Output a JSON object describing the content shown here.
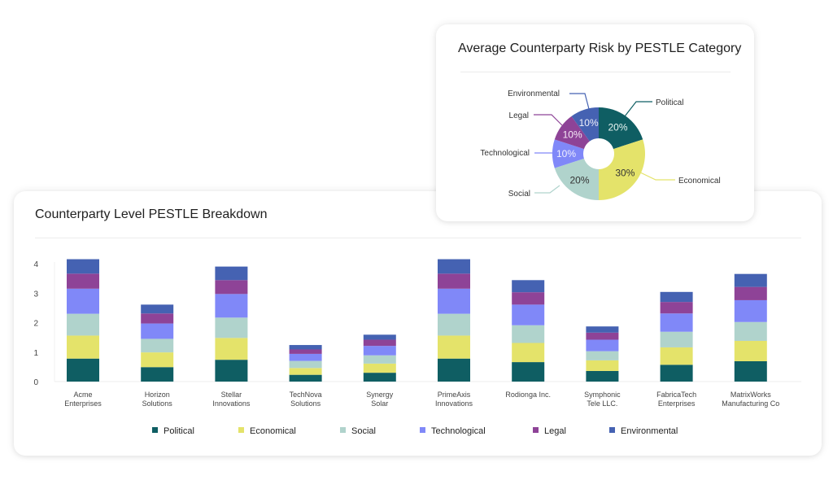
{
  "bar_card": {
    "title": "Counterparty Level PESTLE Breakdown"
  },
  "donut_card": {
    "title": "Average Counterparty Risk by PESTLE Category"
  },
  "colors": {
    "Political": "#0f5e63",
    "Economical": "#e4e36a",
    "Social": "#b0d3cc",
    "Technological": "#8088f8",
    "Legal": "#8e4397",
    "Environmental": "#4562b2"
  },
  "chart_data": [
    {
      "type": "bar",
      "stacked": true,
      "title": "Counterparty Level PESTLE Breakdown",
      "xlabel": "",
      "ylabel": "",
      "ylim": [
        0,
        4
      ],
      "yticks": [
        0,
        1,
        2,
        3,
        4
      ],
      "grid": false,
      "legend_position": "bottom",
      "categories": [
        [
          "Acme",
          "Enterprises"
        ],
        [
          "Horizon",
          "Solutions"
        ],
        [
          "Stellar",
          "Innovations"
        ],
        [
          "TechNova",
          "Solutions"
        ],
        [
          "Synergy",
          "Solar"
        ],
        [
          "PrimeAxis",
          "Innovations"
        ],
        [
          "Rodionga Inc."
        ],
        [
          "Symphonic",
          "Tele LLC."
        ],
        [
          "FabricaTech",
          "Enterprises"
        ],
        [
          "MatrixWorks",
          "Manufacturing Co"
        ]
      ],
      "series": [
        {
          "name": "Political",
          "values": [
            0.78,
            0.49,
            0.74,
            0.23,
            0.3,
            0.78,
            0.66,
            0.36,
            0.57,
            0.69
          ]
        },
        {
          "name": "Economical",
          "values": [
            0.78,
            0.5,
            0.74,
            0.23,
            0.31,
            0.78,
            0.65,
            0.36,
            0.59,
            0.69
          ]
        },
        {
          "name": "Social",
          "values": [
            0.74,
            0.46,
            0.69,
            0.24,
            0.28,
            0.74,
            0.6,
            0.31,
            0.53,
            0.64
          ]
        },
        {
          "name": "Technological",
          "values": [
            0.85,
            0.52,
            0.8,
            0.24,
            0.32,
            0.85,
            0.7,
            0.39,
            0.62,
            0.74
          ]
        },
        {
          "name": "Legal",
          "values": [
            0.51,
            0.34,
            0.47,
            0.15,
            0.21,
            0.51,
            0.42,
            0.24,
            0.39,
            0.45
          ]
        },
        {
          "name": "Environmental",
          "values": [
            0.49,
            0.3,
            0.46,
            0.15,
            0.17,
            0.49,
            0.41,
            0.21,
            0.34,
            0.44
          ]
        }
      ]
    },
    {
      "type": "pie",
      "donut": true,
      "title": "Average Counterparty Risk by PESTLE Category",
      "slices": [
        {
          "label": "Political",
          "value": 20,
          "text": "20%"
        },
        {
          "label": "Economical",
          "value": 30,
          "text": "30%"
        },
        {
          "label": "Social",
          "value": 20,
          "text": "20%"
        },
        {
          "label": "Technological",
          "value": 10,
          "text": "10%"
        },
        {
          "label": "Legal",
          "value": 10,
          "text": "10%"
        },
        {
          "label": "Environmental",
          "value": 10,
          "text": "10%"
        }
      ]
    }
  ]
}
